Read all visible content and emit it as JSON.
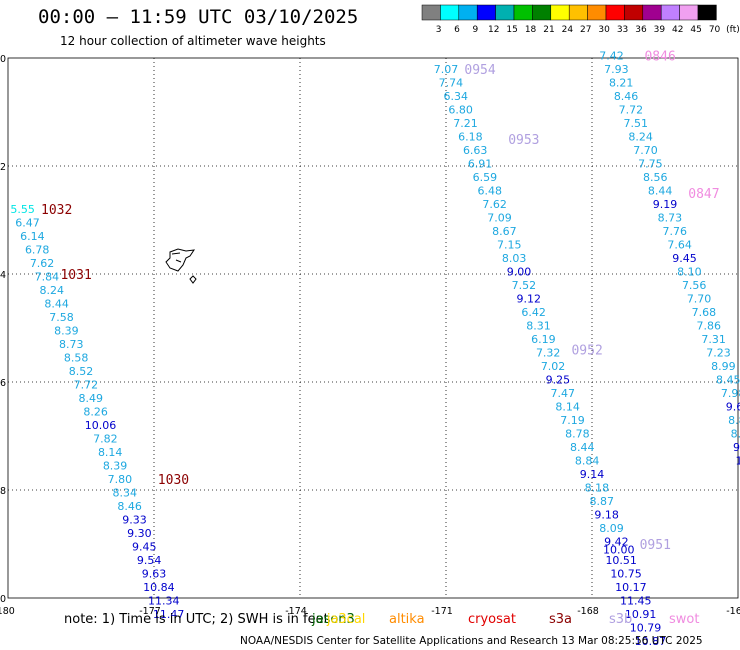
{
  "footer": {
    "note": "note: 1) Time is in UTC; 2) SWH is in feet",
    "credit": "NOAA/NESDIS Center for Satellite Applications and Research   13 Mar 08:25:56 UTC 2025"
  },
  "legend": [
    {
      "name": "jason3",
      "color": "#006400"
    },
    {
      "name": "ja3cal",
      "color": "#FFD700"
    },
    {
      "name": "altika",
      "color": "#FF8C00"
    },
    {
      "name": "cryosat",
      "color": "#E00000"
    },
    {
      "name": "s3a",
      "color": "#8B0000"
    },
    {
      "name": "s3b",
      "color": "#B0A0E0"
    },
    {
      "name": "swot",
      "color": "#F08CE0"
    }
  ],
  "colors": {
    "level_3": "#00E5E5",
    "level_6": "#1EA8E0",
    "level_9": "#0000CC",
    "s3a": "#8B0000",
    "s3b": "#B0A0E0",
    "swot": "#F08CE0",
    "grid": "#000000"
  },
  "chart_data": {
    "type": "scatter",
    "title": "00:00 – 11:59 UTC 03/10/2025",
    "subtitle": "12 hour collection of altimeter wave heights",
    "units": "ft",
    "xlim": [
      -180,
      -165
    ],
    "ylim": [
      -50,
      -40
    ],
    "x_ticks": [
      "-180",
      "-177",
      "-174",
      "-171",
      "-168",
      "-16"
    ],
    "y_ticks": [
      "-40",
      "-42",
      "-44",
      "-46",
      "-48",
      "-50"
    ],
    "colorbar": {
      "ticks": [
        "3",
        "6",
        "9",
        "12",
        "15",
        "18",
        "21",
        "24",
        "27",
        "30",
        "33",
        "36",
        "39",
        "42",
        "45",
        "70",
        "(ft)"
      ],
      "colors": [
        "#808080",
        "#00FFFF",
        "#00B0F0",
        "#0000FF",
        "#00B0B0",
        "#00C000",
        "#008000",
        "#FFFF00",
        "#FFC000",
        "#FF8C00",
        "#FF0000",
        "#C00000",
        "#A00090",
        "#C080FF",
        "#F0A0F0",
        "#000000"
      ]
    },
    "series": [
      {
        "name": "s3a",
        "points": [
          {
            "x": -179.7,
            "y": -42.8,
            "v": "5.55"
          },
          {
            "x": -179.6,
            "y": -43.05,
            "v": "6.47"
          },
          {
            "x": -179.5,
            "y": -43.3,
            "v": "6.14"
          },
          {
            "x": -179.4,
            "y": -43.55,
            "v": "6.78"
          },
          {
            "x": -179.3,
            "y": -43.8,
            "v": "7.62"
          },
          {
            "x": -179.2,
            "y": -44.05,
            "v": "7.84"
          },
          {
            "x": -179.1,
            "y": -44.3,
            "v": "8.24"
          },
          {
            "x": -179.0,
            "y": -44.55,
            "v": "8.44"
          },
          {
            "x": -178.9,
            "y": -44.8,
            "v": "7.58"
          },
          {
            "x": -178.8,
            "y": -45.05,
            "v": "8.39"
          },
          {
            "x": -178.7,
            "y": -45.3,
            "v": "8.73"
          },
          {
            "x": -178.6,
            "y": -45.55,
            "v": "8.58"
          },
          {
            "x": -178.5,
            "y": -45.8,
            "v": "8.52"
          },
          {
            "x": -178.4,
            "y": -46.05,
            "v": "7.72"
          },
          {
            "x": -178.3,
            "y": -46.3,
            "v": "8.49"
          },
          {
            "x": -178.2,
            "y": -46.55,
            "v": "8.26"
          },
          {
            "x": -178.1,
            "y": -46.8,
            "v": "10.06"
          },
          {
            "x": -178.0,
            "y": -47.05,
            "v": "7.82"
          },
          {
            "x": -177.9,
            "y": -47.3,
            "v": "8.14"
          },
          {
            "x": -177.8,
            "y": -47.55,
            "v": "8.39"
          },
          {
            "x": -177.7,
            "y": -47.8,
            "v": "7.80"
          },
          {
            "x": -177.6,
            "y": -48.05,
            "v": "8.34"
          },
          {
            "x": -177.5,
            "y": -48.3,
            "v": "8.46"
          },
          {
            "x": -177.4,
            "y": -48.55,
            "v": "9.33"
          },
          {
            "x": -177.3,
            "y": -48.8,
            "v": "9.30"
          },
          {
            "x": -177.2,
            "y": -49.05,
            "v": "9.45"
          },
          {
            "x": -177.1,
            "y": -49.3,
            "v": "9.54"
          },
          {
            "x": -177.0,
            "y": -49.55,
            "v": "9.63"
          },
          {
            "x": -176.9,
            "y": -49.8,
            "v": "10.84"
          },
          {
            "x": -176.8,
            "y": -50.05,
            "v": "11.34"
          },
          {
            "x": -176.7,
            "y": -50.3,
            "v": "11.47"
          }
        ],
        "pass_times": [
          {
            "label": "1032",
            "x": -179.0,
            "y": -42.8
          },
          {
            "label": "1031",
            "x": -178.6,
            "y": -44.0
          },
          {
            "label": "1030",
            "x": -176.6,
            "y": -47.8
          }
        ]
      },
      {
        "name": "s3b",
        "points": [
          {
            "x": -171.0,
            "y": -40.2,
            "v": "7.07"
          },
          {
            "x": -170.9,
            "y": -40.45,
            "v": "7.74"
          },
          {
            "x": -170.8,
            "y": -40.7,
            "v": "6.34"
          },
          {
            "x": -170.7,
            "y": -40.95,
            "v": "6.80"
          },
          {
            "x": -170.6,
            "y": -41.2,
            "v": "7.21"
          },
          {
            "x": -170.5,
            "y": -41.45,
            "v": "6.18"
          },
          {
            "x": -170.4,
            "y": -41.7,
            "v": "6.63"
          },
          {
            "x": -170.3,
            "y": -41.95,
            "v": "6.91"
          },
          {
            "x": -170.2,
            "y": -42.2,
            "v": "6.59"
          },
          {
            "x": -170.1,
            "y": -42.45,
            "v": "6.48"
          },
          {
            "x": -170.0,
            "y": -42.7,
            "v": "7.62"
          },
          {
            "x": -169.9,
            "y": -42.95,
            "v": "7.09"
          },
          {
            "x": -169.8,
            "y": -43.2,
            "v": "8.67"
          },
          {
            "x": -169.7,
            "y": -43.45,
            "v": "7.15"
          },
          {
            "x": -169.6,
            "y": -43.7,
            "v": "8.03"
          },
          {
            "x": -169.5,
            "y": -43.95,
            "v": "9.00"
          },
          {
            "x": -169.4,
            "y": -44.2,
            "v": "7.52"
          },
          {
            "x": -169.3,
            "y": -44.45,
            "v": "9.12"
          },
          {
            "x": -169.2,
            "y": -44.7,
            "v": "6.42"
          },
          {
            "x": -169.1,
            "y": -44.95,
            "v": "8.31"
          },
          {
            "x": -169.0,
            "y": -45.2,
            "v": "6.19"
          },
          {
            "x": -168.9,
            "y": -45.45,
            "v": "7.32"
          },
          {
            "x": -168.8,
            "y": -45.7,
            "v": "7.02"
          },
          {
            "x": -168.7,
            "y": -45.95,
            "v": "9.25"
          },
          {
            "x": -168.6,
            "y": -46.2,
            "v": "7.47"
          },
          {
            "x": -168.5,
            "y": -46.45,
            "v": "8.14"
          },
          {
            "x": -168.4,
            "y": -46.7,
            "v": "7.19"
          },
          {
            "x": -168.3,
            "y": -46.95,
            "v": "8.78"
          },
          {
            "x": -168.2,
            "y": -47.2,
            "v": "8.44"
          },
          {
            "x": -168.1,
            "y": -47.45,
            "v": "8.84"
          },
          {
            "x": -168.0,
            "y": -47.7,
            "v": "9.14"
          },
          {
            "x": -167.9,
            "y": -47.95,
            "v": "8.18"
          },
          {
            "x": -167.8,
            "y": -48.2,
            "v": "8.87"
          },
          {
            "x": -167.7,
            "y": -48.45,
            "v": "9.18"
          },
          {
            "x": -167.6,
            "y": -48.7,
            "v": "8.09"
          },
          {
            "x": -167.5,
            "y": -48.95,
            "v": "9.42"
          },
          {
            "x": -167.45,
            "y": -49.1,
            "v": "10.00"
          },
          {
            "x": -167.4,
            "y": -49.3,
            "v": "10.51"
          },
          {
            "x": -167.3,
            "y": -49.55,
            "v": "10.75"
          },
          {
            "x": -167.2,
            "y": -49.8,
            "v": "10.17"
          },
          {
            "x": -167.1,
            "y": -50.05,
            "v": "11.45"
          },
          {
            "x": -167.0,
            "y": -50.3,
            "v": "10.91"
          },
          {
            "x": -166.9,
            "y": -50.55,
            "v": "10.79"
          },
          {
            "x": -166.8,
            "y": -50.8,
            "v": "10.87"
          }
        ],
        "pass_times": [
          {
            "label": "0954",
            "x": -170.3,
            "y": -40.2
          },
          {
            "label": "0953",
            "x": -169.4,
            "y": -41.5
          },
          {
            "label": "0952",
            "x": -168.1,
            "y": -45.4
          },
          {
            "label": "0951",
            "x": -166.7,
            "y": -49.0
          }
        ]
      },
      {
        "name": "swot",
        "points": [
          {
            "x": -167.6,
            "y": -39.95,
            "v": "7.42"
          },
          {
            "x": -167.5,
            "y": -40.2,
            "v": "7.93"
          },
          {
            "x": -167.4,
            "y": -40.45,
            "v": "8.21"
          },
          {
            "x": -167.3,
            "y": -40.7,
            "v": "8.46"
          },
          {
            "x": -167.2,
            "y": -40.95,
            "v": "7.72"
          },
          {
            "x": -167.1,
            "y": -41.2,
            "v": "7.51"
          },
          {
            "x": -167.0,
            "y": -41.45,
            "v": "8.24"
          },
          {
            "x": -166.9,
            "y": -41.7,
            "v": "7.70"
          },
          {
            "x": -166.8,
            "y": -41.95,
            "v": "7.75"
          },
          {
            "x": -166.7,
            "y": -42.2,
            "v": "8.56"
          },
          {
            "x": -166.6,
            "y": -42.45,
            "v": "8.44"
          },
          {
            "x": -166.5,
            "y": -42.7,
            "v": "9.19"
          },
          {
            "x": -166.4,
            "y": -42.95,
            "v": "8.73"
          },
          {
            "x": -166.3,
            "y": -43.2,
            "v": "7.76"
          },
          {
            "x": -166.2,
            "y": -43.45,
            "v": "7.64"
          },
          {
            "x": -166.1,
            "y": -43.7,
            "v": "9.45"
          },
          {
            "x": -166.0,
            "y": -43.95,
            "v": "8.10"
          },
          {
            "x": -165.9,
            "y": -44.2,
            "v": "7.56"
          },
          {
            "x": -165.8,
            "y": -44.45,
            "v": "7.70"
          },
          {
            "x": -165.7,
            "y": -44.7,
            "v": "7.68"
          },
          {
            "x": -165.6,
            "y": -44.95,
            "v": "7.86"
          },
          {
            "x": -165.5,
            "y": -45.2,
            "v": "7.31"
          },
          {
            "x": -165.4,
            "y": -45.45,
            "v": "7.23"
          },
          {
            "x": -165.3,
            "y": -45.7,
            "v": "8.99"
          },
          {
            "x": -165.2,
            "y": -45.95,
            "v": "8.45"
          },
          {
            "x": -165.1,
            "y": -46.2,
            "v": "7.98"
          },
          {
            "x": -165.0,
            "y": -46.45,
            "v": "9.66"
          },
          {
            "x": -164.95,
            "y": -46.7,
            "v": "8.87"
          },
          {
            "x": -164.9,
            "y": -46.95,
            "v": "8.39"
          },
          {
            "x": -164.85,
            "y": -47.2,
            "v": "9.12"
          },
          {
            "x": -164.8,
            "y": -47.45,
            "v": "10.2"
          },
          {
            "x": -164.75,
            "y": -47.7,
            "v": "9"
          }
        ],
        "pass_times": [
          {
            "label": "0846",
            "x": -166.6,
            "y": -39.95
          },
          {
            "label": "0847",
            "x": -165.7,
            "y": -42.5
          },
          {
            "label": "08",
            "x": -164.8,
            "y": -45.8
          }
        ]
      }
    ]
  }
}
